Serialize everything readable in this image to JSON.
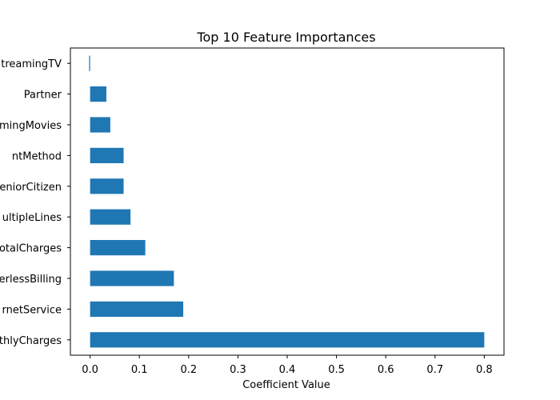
{
  "chart_data": {
    "type": "bar",
    "orientation": "horizontal",
    "title": "Top 10 Feature Importances",
    "xlabel": "Coefficient Value",
    "ylabel": "",
    "categories": [
      "MonthlyCharges",
      "InternetService",
      "PaperlessBilling",
      "TotalCharges",
      "MultipleLines",
      "SeniorCitizen",
      "PaymentMethod",
      "StreamingMovies",
      "Partner",
      "StreamingTV"
    ],
    "category_labels": [
      "thlyCharges",
      "rnetService",
      "erlessBilling",
      "otalCharges",
      "ultipleLines",
      "eniorCitizen",
      "ntMethod",
      "mingMovies",
      "Partner",
      "treamingTV"
    ],
    "values": [
      0.8,
      0.189,
      0.17,
      0.112,
      0.082,
      0.068,
      0.068,
      0.041,
      0.033,
      -0.002
    ],
    "xlim": [
      -0.04,
      0.84
    ],
    "xticks": [
      0.0,
      0.1,
      0.2,
      0.3,
      0.4,
      0.5,
      0.6,
      0.7,
      0.8
    ],
    "xtick_labels": [
      "0.0",
      "0.1",
      "0.2",
      "0.3",
      "0.4",
      "0.5",
      "0.6",
      "0.7",
      "0.8"
    ],
    "bar_color": "#1f77b4",
    "grid": false,
    "legend": "none"
  }
}
